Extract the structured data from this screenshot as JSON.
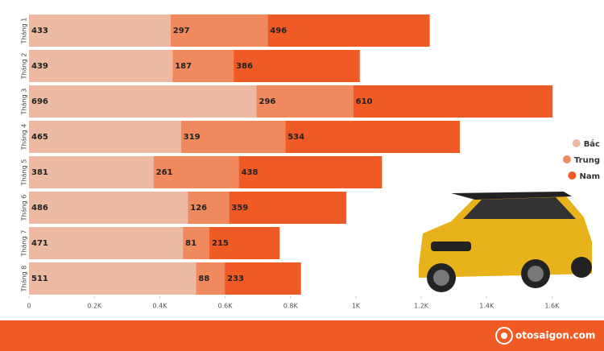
{
  "chart_data": {
    "type": "stacked-barh",
    "categories": [
      "Tháng 1",
      "Tháng 2",
      "Tháng 3",
      "Tháng 4",
      "Tháng 5",
      "Tháng 6",
      "Tháng 7",
      "Tháng 8"
    ],
    "series": [
      {
        "name": "Bắc",
        "color": "#ecbaa2",
        "values": [
          433,
          439,
          696,
          465,
          381,
          486,
          471,
          511
        ]
      },
      {
        "name": "Trung",
        "color": "#f08a5e",
        "values": [
          297,
          187,
          296,
          319,
          261,
          126,
          81,
          88
        ]
      },
      {
        "name": "Nam",
        "color": "#f05a24",
        "values": [
          496,
          386,
          610,
          534,
          438,
          359,
          215,
          233
        ]
      }
    ],
    "xlim": [
      0,
      1700
    ],
    "xticks": [
      0,
      {
        "value": 200,
        "label": "0.2K"
      },
      {
        "value": 400,
        "label": "0.4K"
      },
      {
        "value": 600,
        "label": "0.6K"
      },
      {
        "value": 800,
        "label": "0.8K"
      },
      {
        "value": 1000,
        "label": "1K"
      },
      {
        "value": 1200,
        "label": "1.2K"
      },
      {
        "value": 1400,
        "label": "1.4K"
      },
      {
        "value": 1600,
        "label": "1.6K"
      }
    ],
    "legend": "right",
    "footer": "otosaigon.com"
  }
}
